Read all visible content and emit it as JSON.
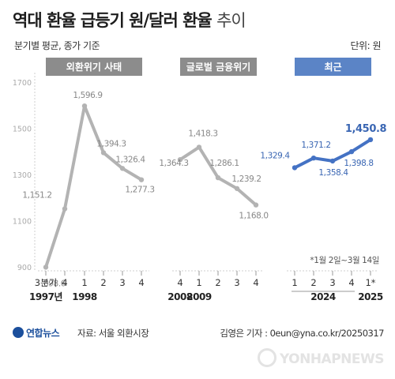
{
  "header": {
    "title": "역대 환율 급등기 원/달러 환율",
    "title_suffix": "추이",
    "subtitle": "분기별 평균, 종가 기준",
    "unit": "단위: 원"
  },
  "footer": {
    "logo": "연합뉴스",
    "source": "자료: 서울 외환시장",
    "credit": "김영은 기자 : 0eun@yna.co.kr/20250317",
    "watermark": "YONHAPNEWS"
  },
  "colors": {
    "past_series": "#b3b3b3",
    "recent_series": "#4472c4",
    "past_label": "#888888",
    "recent_label": "#3a66b3",
    "period_gray": "#8c8c8c",
    "period_blue": "#5b84c6"
  },
  "chart_data": {
    "type": "line",
    "ylim": [
      900,
      1700
    ],
    "yticks": [
      900,
      1100,
      1300,
      1500,
      1700
    ],
    "grid": false,
    "note": "*1월 2일~3월 14일",
    "periods": [
      {
        "label": "외환위기 사태",
        "style": "gray",
        "group": 0
      },
      {
        "label": "글로벌 금융위기",
        "style": "gray",
        "group": 1
      },
      {
        "label": "최근",
        "style": "blue",
        "group": 2
      }
    ],
    "series": [
      {
        "id": "asian-crisis",
        "style": "past",
        "points": [
          {
            "tick": "3분기",
            "year": "1997년",
            "value": 898.6,
            "label": "898.6"
          },
          {
            "tick": "4",
            "value": 1151.2,
            "label": "1,151.2"
          },
          {
            "tick": "1",
            "year": "1998",
            "value": 1596.9,
            "label": "1,596.9"
          },
          {
            "tick": "2",
            "value": 1394.3,
            "label": "1,394.3"
          },
          {
            "tick": "3",
            "value": 1326.4,
            "label": "1,326.4"
          },
          {
            "tick": "4",
            "value": 1277.3,
            "label": "1,277.3"
          }
        ]
      },
      {
        "id": "global-crisis",
        "style": "past",
        "points": [
          {
            "tick": "4",
            "year": "2008",
            "value": 1364.3,
            "label": "1,364.3"
          },
          {
            "tick": "1",
            "year": "2009",
            "value": 1418.3,
            "label": "1,418.3"
          },
          {
            "tick": "2",
            "value": 1286.1,
            "label": "1,286.1"
          },
          {
            "tick": "3",
            "value": 1239.2,
            "label": "1,239.2"
          },
          {
            "tick": "4",
            "value": 1168.0,
            "label": "1,168.0"
          }
        ]
      },
      {
        "id": "recent",
        "style": "recent",
        "points": [
          {
            "tick": "1",
            "value": 1329.4,
            "label": "1,329.4"
          },
          {
            "tick": "2",
            "value": 1371.2,
            "label": "1,371.2"
          },
          {
            "tick": "3",
            "value": 1358.4,
            "label": "1,358.4"
          },
          {
            "tick": "4",
            "value": 1398.8,
            "label": "1,398.8"
          },
          {
            "tick": "1*",
            "value": 1450.8,
            "label": "1,450.8",
            "highlight": true
          }
        ],
        "years": [
          {
            "year": "2024",
            "from": 0,
            "to": 3
          },
          {
            "year": "2025",
            "from": 4,
            "to": 4
          }
        ]
      }
    ]
  }
}
